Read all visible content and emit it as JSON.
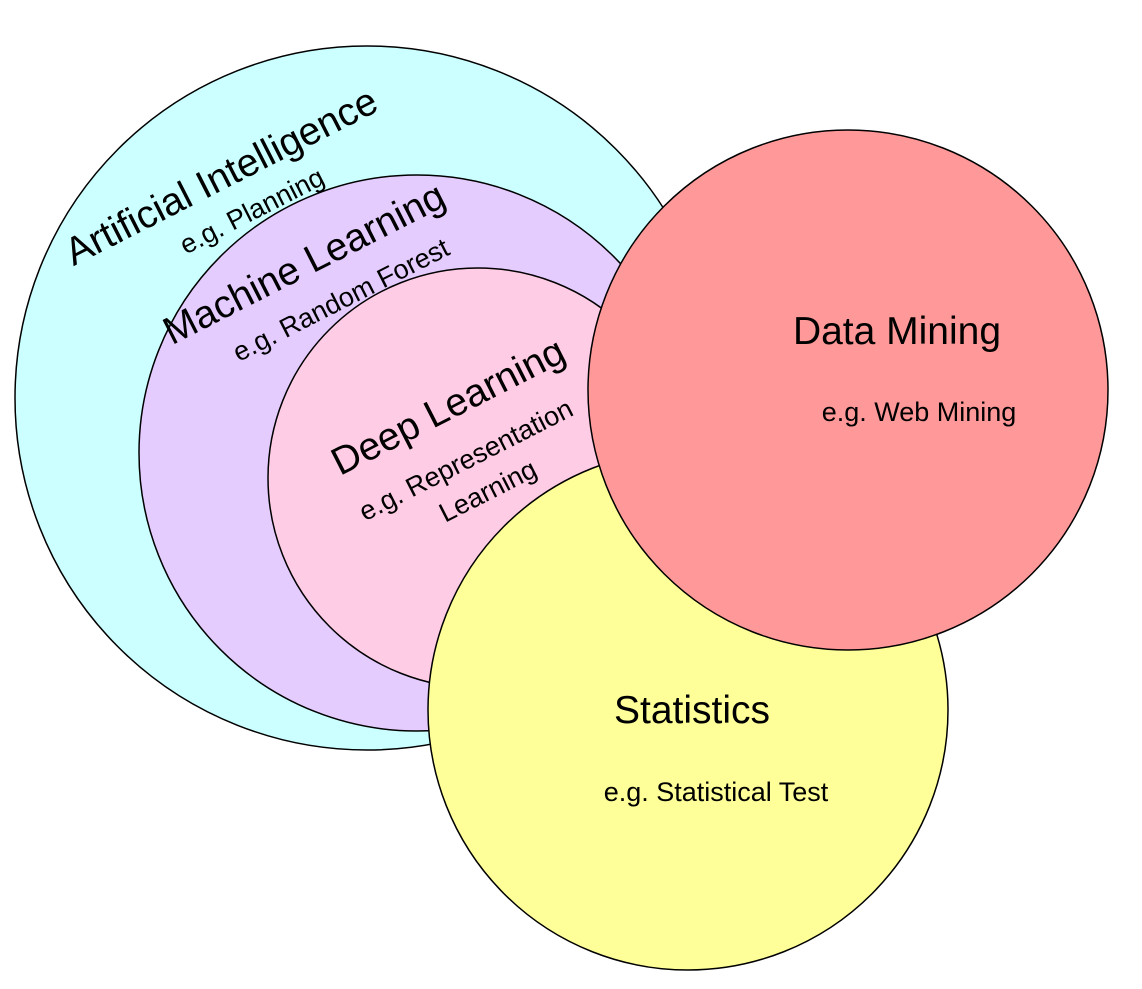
{
  "colors": {
    "artificial_intelligence": "#ccffff",
    "machine_learning": "#e5ccff",
    "deep_learning": "#ffcce5",
    "statistics": "#ffff99",
    "data_mining": "#ff9999",
    "outline": "#000000"
  },
  "labels": {
    "artificial_intelligence": {
      "title": "Artificial Intelligence",
      "example": "e.g. Planning"
    },
    "machine_learning": {
      "title": "Machine Learning",
      "example": "e.g. Random Forest"
    },
    "deep_learning": {
      "title": "Deep Learning",
      "example_line1": "e.g. Representation",
      "example_line2": "Learning"
    },
    "data_mining": {
      "title": "Data Mining",
      "example": "e.g. Web Mining"
    },
    "statistics": {
      "title": "Statistics",
      "example": "e.g. Statistical Test"
    }
  }
}
